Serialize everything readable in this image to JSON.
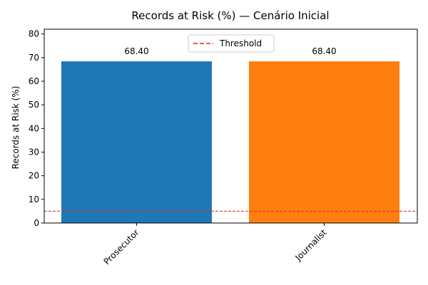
{
  "chart_data": {
    "type": "bar",
    "title": "Records at Risk (%) — Cenário Inicial",
    "xlabel": "",
    "ylabel": "Records at Risk (%)",
    "categories": [
      "Prosecutor",
      "Journalist"
    ],
    "values": [
      68.4,
      68.4
    ],
    "value_labels": [
      "68.40",
      "68.40"
    ],
    "bar_colors": [
      "#1f77b4",
      "#ff7f0e"
    ],
    "ylim": [
      0,
      82
    ],
    "yticks": [
      0,
      10,
      20,
      30,
      40,
      50,
      60,
      70,
      80
    ],
    "threshold": {
      "label": "Threshold",
      "value": 5,
      "color": "#d62728",
      "style": "dashed"
    },
    "legend_position": "top-center",
    "grid": false,
    "xtick_rotation": "45deg"
  }
}
